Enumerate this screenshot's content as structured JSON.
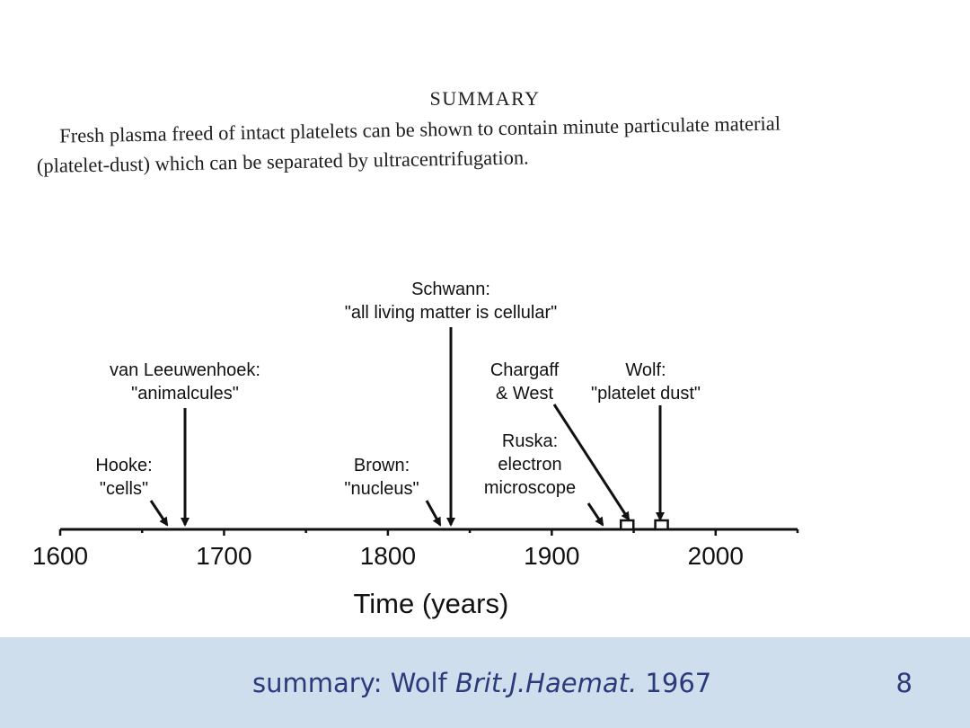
{
  "summary": {
    "heading": "SUMMARY",
    "line1": "Fresh plasma freed of intact platelets can be shown to contain minute particulate material",
    "line2": "(platelet-dust) which can be separated by ultracentrifugation."
  },
  "timeline": {
    "axis_min": 1600,
    "axis_max": 2050,
    "tick_labels": [
      "1600",
      "1700",
      "1800",
      "1900",
      "2000"
    ],
    "xlabel": "Time (years)",
    "events": [
      {
        "id": "hooke",
        "year": 1665,
        "label_lines": [
          "Hooke:",
          "\"cells\""
        ],
        "arrow": "short"
      },
      {
        "id": "van-leeuwenhoek",
        "year": 1676,
        "label_lines": [
          "van Leeuwenhoek:",
          "\"animalcules\""
        ],
        "arrow": "long"
      },
      {
        "id": "brown",
        "year": 1831,
        "label_lines": [
          "Brown:",
          "\"nucleus\""
        ],
        "arrow": "short"
      },
      {
        "id": "schwann",
        "year": 1839,
        "label_lines": [
          "Schwann:",
          "\"all living matter is cellular\""
        ],
        "arrow": "long"
      },
      {
        "id": "ruska",
        "year": 1931,
        "label_lines": [
          "Ruska:",
          "electron",
          "microscope"
        ],
        "arrow": "short"
      },
      {
        "id": "chargaff-west",
        "year": 1946,
        "label_lines": [
          "Chargaff",
          "& West"
        ],
        "arrow": "diagonal",
        "marker": true
      },
      {
        "id": "wolf",
        "year": 1967,
        "label_lines": [
          "Wolf:",
          "\"platelet dust\""
        ],
        "arrow": "long",
        "marker": true
      }
    ]
  },
  "footer": {
    "caption_prefix": "summary: Wolf ",
    "journal": "Brit.J.Haemat.",
    "year": " 1967",
    "slide_number": "8",
    "background": "#cfdeed",
    "text_color": "#2a3a7a"
  }
}
